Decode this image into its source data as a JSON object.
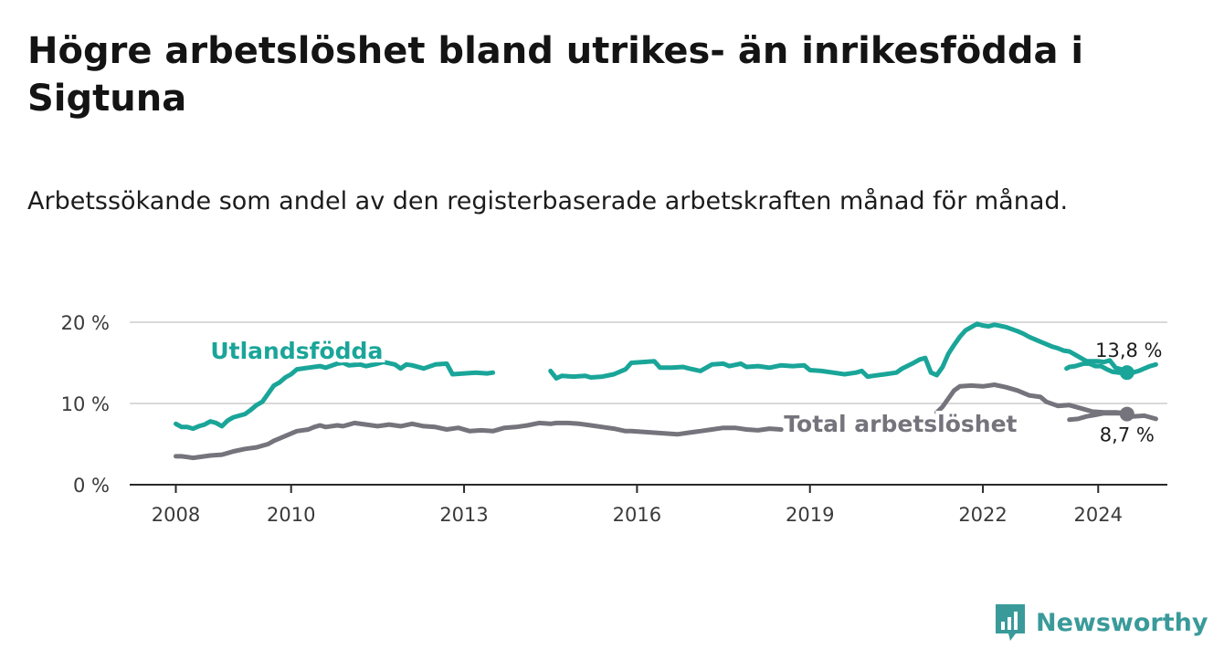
{
  "title": "Högre arbetslöshet bland utrikes- än inrikesfödda i Sigtuna",
  "subtitle": "Arbetssökande som andel av den registerbaserade arbetskraften månad för månad.",
  "brand": {
    "name": "Newsworthy",
    "icon": "newsworthy-logo-icon",
    "color": "#3a9a9a"
  },
  "chart_data": {
    "type": "line",
    "title": "Högre arbetslöshet bland utrikes- än inrikesfödda i Sigtuna",
    "xlabel": "",
    "ylabel": "",
    "xlim": [
      2007.2,
      2025.2
    ],
    "ylim": [
      0,
      20
    ],
    "yticks": [
      {
        "value": 0,
        "label": "0 %"
      },
      {
        "value": 10,
        "label": "10 %"
      },
      {
        "value": 20,
        "label": "20 %"
      }
    ],
    "xticks": [
      {
        "value": 2008,
        "label": "2008"
      },
      {
        "value": 2010,
        "label": "2010"
      },
      {
        "value": 2013,
        "label": "2013"
      },
      {
        "value": 2016,
        "label": "2016"
      },
      {
        "value": 2019,
        "label": "2019"
      },
      {
        "value": 2022,
        "label": "2022"
      },
      {
        "value": 2024,
        "label": "2024"
      }
    ],
    "grid": true,
    "series": [
      {
        "name": "Utlandsfödda",
        "color": "#1aa599",
        "end_label": "13,8 %",
        "segments": [
          [
            [
              2008.0,
              7.5
            ],
            [
              2008.1,
              7.1
            ],
            [
              2008.2,
              7.1
            ],
            [
              2008.3,
              6.9
            ],
            [
              2008.4,
              7.2
            ],
            [
              2008.5,
              7.4
            ],
            [
              2008.6,
              7.8
            ],
            [
              2008.7,
              7.6
            ],
            [
              2008.8,
              7.2
            ],
            [
              2008.9,
              7.9
            ],
            [
              2009.0,
              8.3
            ],
            [
              2009.2,
              8.7
            ],
            [
              2009.3,
              9.2
            ],
            [
              2009.4,
              9.8
            ],
            [
              2009.5,
              10.2
            ],
            [
              2009.6,
              11.2
            ],
            [
              2009.7,
              12.2
            ],
            [
              2009.8,
              12.6
            ],
            [
              2009.9,
              13.2
            ],
            [
              2010.0,
              13.6
            ],
            [
              2010.1,
              14.2
            ],
            [
              2010.3,
              14.4
            ],
            [
              2010.5,
              14.6
            ],
            [
              2010.6,
              14.4
            ],
            [
              2010.8,
              14.9
            ],
            [
              2010.9,
              15.0
            ],
            [
              2011.0,
              14.7
            ],
            [
              2011.2,
              14.8
            ],
            [
              2011.3,
              14.6
            ],
            [
              2011.5,
              14.9
            ],
            [
              2011.6,
              15.1
            ],
            [
              2011.8,
              14.8
            ],
            [
              2011.9,
              14.3
            ],
            [
              2012.0,
              14.8
            ],
            [
              2012.1,
              14.7
            ],
            [
              2012.3,
              14.3
            ],
            [
              2012.5,
              14.8
            ],
            [
              2012.7,
              14.9
            ],
            [
              2012.8,
              13.6
            ],
            [
              2013.0,
              13.7
            ],
            [
              2013.2,
              13.8
            ],
            [
              2013.4,
              13.7
            ],
            [
              2013.5,
              13.8
            ]
          ],
          [
            [
              2014.5,
              14.0
            ],
            [
              2014.6,
              13.1
            ],
            [
              2014.7,
              13.4
            ],
            [
              2014.9,
              13.3
            ],
            [
              2015.1,
              13.4
            ],
            [
              2015.2,
              13.2
            ],
            [
              2015.4,
              13.3
            ],
            [
              2015.6,
              13.6
            ],
            [
              2015.8,
              14.2
            ],
            [
              2015.9,
              15.0
            ],
            [
              2016.1,
              15.1
            ],
            [
              2016.3,
              15.2
            ],
            [
              2016.4,
              14.4
            ],
            [
              2016.6,
              14.4
            ],
            [
              2016.8,
              14.5
            ],
            [
              2016.9,
              14.3
            ],
            [
              2017.1,
              14.0
            ],
            [
              2017.3,
              14.8
            ],
            [
              2017.5,
              14.9
            ],
            [
              2017.6,
              14.6
            ],
            [
              2017.8,
              14.9
            ],
            [
              2017.9,
              14.5
            ],
            [
              2018.1,
              14.6
            ],
            [
              2018.3,
              14.4
            ],
            [
              2018.5,
              14.7
            ],
            [
              2018.7,
              14.6
            ],
            [
              2018.9,
              14.7
            ],
            [
              2019.0,
              14.1
            ],
            [
              2019.2,
              14.0
            ],
            [
              2019.4,
              13.8
            ],
            [
              2019.6,
              13.6
            ],
            [
              2019.8,
              13.8
            ],
            [
              2019.9,
              14.0
            ],
            [
              2020.0,
              13.3
            ],
            [
              2020.1,
              13.4
            ],
            [
              2020.3,
              13.6
            ],
            [
              2020.5,
              13.8
            ],
            [
              2020.6,
              14.3
            ],
            [
              2020.8,
              15.0
            ],
            [
              2020.9,
              15.4
            ],
            [
              2021.0,
              15.6
            ],
            [
              2021.1,
              13.8
            ],
            [
              2021.2,
              13.5
            ],
            [
              2021.3,
              14.5
            ],
            [
              2021.4,
              16.1
            ],
            [
              2021.5,
              17.2
            ],
            [
              2021.6,
              18.2
            ],
            [
              2021.7,
              19.0
            ],
            [
              2021.8,
              19.4
            ],
            [
              2021.9,
              19.8
            ],
            [
              2022.0,
              19.6
            ],
            [
              2022.1,
              19.5
            ],
            [
              2022.2,
              19.7
            ],
            [
              2022.4,
              19.4
            ],
            [
              2022.6,
              18.9
            ],
            [
              2022.7,
              18.6
            ],
            [
              2022.8,
              18.2
            ],
            [
              2022.9,
              17.9
            ],
            [
              2023.0,
              17.6
            ],
            [
              2023.2,
              17.0
            ],
            [
              2023.3,
              16.8
            ],
            [
              2023.4,
              16.5
            ],
            [
              2023.5,
              16.4
            ],
            [
              2023.6,
              16.0
            ],
            [
              2023.7,
              15.6
            ],
            [
              2023.8,
              15.2
            ],
            [
              2023.9,
              15.2
            ],
            [
              2024.0,
              15.2
            ],
            [
              2024.1,
              15.1
            ],
            [
              2024.2,
              15.3
            ],
            [
              2024.3,
              14.4
            ],
            [
              2024.4,
              14.2
            ],
            [
              2024.5,
              14.0
            ],
            [
              2024.6,
              13.8
            ],
            [
              2024.7,
              14.0
            ],
            [
              2024.8,
              14.3
            ],
            [
              2024.9,
              14.6
            ],
            [
              2025.0,
              14.8
            ]
          ],
          [
            [
              2023.45,
              14.3
            ],
            [
              2023.5,
              14.5
            ],
            [
              2023.6,
              14.6
            ],
            [
              2023.75,
              14.9
            ],
            [
              2023.85,
              14.9
            ],
            [
              2023.95,
              14.6
            ],
            [
              2024.05,
              14.6
            ],
            [
              2024.15,
              14.2
            ],
            [
              2024.25,
              13.9
            ],
            [
              2024.35,
              13.8
            ],
            [
              2024.5,
              13.8
            ]
          ]
        ]
      },
      {
        "name": "Total arbetslöshet",
        "color": "#75737b",
        "end_label": "8,7 %",
        "segments": [
          [
            [
              2008.0,
              3.5
            ],
            [
              2008.1,
              3.5
            ],
            [
              2008.2,
              3.4
            ],
            [
              2008.3,
              3.3
            ],
            [
              2008.5,
              3.5
            ],
            [
              2008.6,
              3.6
            ],
            [
              2008.8,
              3.7
            ],
            [
              2008.9,
              3.9
            ],
            [
              2009.0,
              4.1
            ],
            [
              2009.2,
              4.4
            ],
            [
              2009.4,
              4.6
            ],
            [
              2009.6,
              5.0
            ],
            [
              2009.7,
              5.4
            ],
            [
              2009.8,
              5.7
            ],
            [
              2010.0,
              6.3
            ],
            [
              2010.1,
              6.6
            ],
            [
              2010.3,
              6.8
            ],
            [
              2010.4,
              7.1
            ],
            [
              2010.5,
              7.3
            ],
            [
              2010.6,
              7.1
            ],
            [
              2010.8,
              7.3
            ],
            [
              2010.9,
              7.2
            ],
            [
              2011.1,
              7.6
            ],
            [
              2011.3,
              7.4
            ],
            [
              2011.5,
              7.2
            ],
            [
              2011.7,
              7.4
            ],
            [
              2011.9,
              7.2
            ],
            [
              2012.1,
              7.5
            ],
            [
              2012.3,
              7.2
            ],
            [
              2012.5,
              7.1
            ],
            [
              2012.7,
              6.8
            ],
            [
              2012.9,
              7.0
            ],
            [
              2013.1,
              6.6
            ],
            [
              2013.3,
              6.7
            ],
            [
              2013.5,
              6.6
            ],
            [
              2013.7,
              7.0
            ],
            [
              2013.9,
              7.1
            ],
            [
              2014.1,
              7.3
            ],
            [
              2014.3,
              7.6
            ],
            [
              2014.5,
              7.5
            ],
            [
              2014.6,
              7.6
            ],
            [
              2014.8,
              7.6
            ],
            [
              2015.0,
              7.5
            ],
            [
              2015.2,
              7.3
            ],
            [
              2015.4,
              7.1
            ],
            [
              2015.6,
              6.9
            ],
            [
              2015.8,
              6.6
            ],
            [
              2015.9,
              6.6
            ],
            [
              2016.1,
              6.5
            ],
            [
              2016.3,
              6.4
            ],
            [
              2016.5,
              6.3
            ],
            [
              2016.7,
              6.2
            ],
            [
              2016.9,
              6.4
            ],
            [
              2017.1,
              6.6
            ],
            [
              2017.3,
              6.8
            ],
            [
              2017.5,
              7.0
            ],
            [
              2017.7,
              7.0
            ],
            [
              2017.9,
              6.8
            ],
            [
              2018.1,
              6.7
            ],
            [
              2018.3,
              6.9
            ],
            [
              2018.5,
              6.8
            ]
          ],
          [
            [
              2021.2,
              8.9
            ],
            [
              2021.3,
              9.6
            ],
            [
              2021.4,
              10.6
            ],
            [
              2021.5,
              11.6
            ],
            [
              2021.6,
              12.1
            ],
            [
              2021.8,
              12.2
            ],
            [
              2022.0,
              12.1
            ],
            [
              2022.2,
              12.3
            ],
            [
              2022.4,
              12.0
            ],
            [
              2022.6,
              11.6
            ],
            [
              2022.8,
              11.0
            ],
            [
              2023.0,
              10.8
            ],
            [
              2023.1,
              10.2
            ],
            [
              2023.3,
              9.7
            ],
            [
              2023.5,
              9.8
            ],
            [
              2023.7,
              9.4
            ],
            [
              2023.9,
              9.0
            ],
            [
              2024.1,
              8.9
            ],
            [
              2024.3,
              8.9
            ],
            [
              2024.5,
              8.8
            ],
            [
              2024.6,
              8.4
            ],
            [
              2024.8,
              8.5
            ],
            [
              2025.0,
              8.1
            ]
          ],
          [
            [
              2023.5,
              8.0
            ],
            [
              2023.65,
              8.1
            ],
            [
              2023.8,
              8.4
            ],
            [
              2023.95,
              8.6
            ],
            [
              2024.1,
              8.8
            ],
            [
              2024.25,
              8.8
            ],
            [
              2024.4,
              8.8
            ],
            [
              2024.5,
              8.7
            ]
          ]
        ]
      }
    ]
  }
}
